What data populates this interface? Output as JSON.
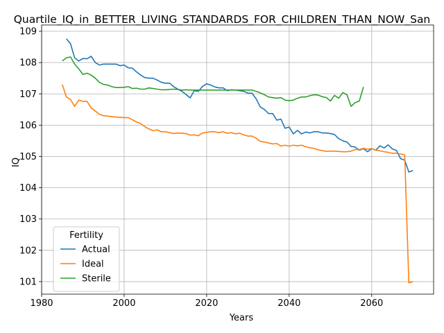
{
  "chart_data": {
    "type": "line",
    "title": "Quartile_IQ_in_BETTER_LIVING_STANDARDS_FOR_CHILDREN_THAN_NOW_San",
    "xlabel": "Years",
    "ylabel": "IQ",
    "xlim": [
      1980,
      2075
    ],
    "ylim": [
      100.6,
      109.2
    ],
    "xticks": [
      1980,
      2000,
      2020,
      2040,
      2060
    ],
    "yticks": [
      101,
      102,
      103,
      104,
      105,
      106,
      107,
      108,
      109
    ],
    "grid": true,
    "legend": {
      "title": "Fertility",
      "placement": "lower-left",
      "entries": [
        "Actual",
        "Ideal",
        "Sterile"
      ]
    },
    "series": [
      {
        "name": "Actual",
        "color": "#1f77b4",
        "points": [
          [
            1986,
            108.76
          ],
          [
            1987,
            108.6
          ],
          [
            1988,
            108.15
          ],
          [
            1989,
            108.05
          ],
          [
            1990,
            108.13
          ],
          [
            1991,
            108.12
          ],
          [
            1992,
            108.2
          ],
          [
            1993,
            108.0
          ],
          [
            1994,
            107.92
          ],
          [
            1995,
            107.95
          ],
          [
            1996,
            107.95
          ],
          [
            1997,
            107.95
          ],
          [
            1998,
            107.95
          ],
          [
            1999,
            107.9
          ],
          [
            2000,
            107.92
          ],
          [
            2001,
            107.83
          ],
          [
            2002,
            107.82
          ],
          [
            2003,
            107.7
          ],
          [
            2004,
            107.6
          ],
          [
            2005,
            107.52
          ],
          [
            2006,
            107.5
          ],
          [
            2007,
            107.5
          ],
          [
            2008,
            107.44
          ],
          [
            2009,
            107.37
          ],
          [
            2010,
            107.34
          ],
          [
            2011,
            107.34
          ],
          [
            2012,
            107.23
          ],
          [
            2013,
            107.15
          ],
          [
            2014,
            107.08
          ],
          [
            2015,
            106.98
          ],
          [
            2016,
            106.87
          ],
          [
            2017,
            107.1
          ],
          [
            2018,
            107.08
          ],
          [
            2019,
            107.24
          ],
          [
            2020,
            107.32
          ],
          [
            2021,
            107.28
          ],
          [
            2022,
            107.22
          ],
          [
            2023,
            107.19
          ],
          [
            2024,
            107.19
          ],
          [
            2025,
            107.1
          ],
          [
            2026,
            107.13
          ],
          [
            2027,
            107.12
          ],
          [
            2028,
            107.1
          ],
          [
            2029,
            107.08
          ],
          [
            2030,
            107.02
          ],
          [
            2031,
            107.02
          ],
          [
            2032,
            106.84
          ],
          [
            2033,
            106.58
          ],
          [
            2034,
            106.5
          ],
          [
            2035,
            106.37
          ],
          [
            2036,
            106.37
          ],
          [
            2037,
            106.16
          ],
          [
            2038,
            106.19
          ],
          [
            2039,
            105.9
          ],
          [
            2040,
            105.94
          ],
          [
            2041,
            105.72
          ],
          [
            2042,
            105.83
          ],
          [
            2043,
            105.72
          ],
          [
            2044,
            105.78
          ],
          [
            2045,
            105.75
          ],
          [
            2046,
            105.79
          ],
          [
            2047,
            105.79
          ],
          [
            2048,
            105.75
          ],
          [
            2049,
            105.75
          ],
          [
            2050,
            105.73
          ],
          [
            2051,
            105.7
          ],
          [
            2052,
            105.57
          ],
          [
            2053,
            105.5
          ],
          [
            2054,
            105.46
          ],
          [
            2055,
            105.32
          ],
          [
            2056,
            105.3
          ],
          [
            2057,
            105.2
          ],
          [
            2058,
            105.25
          ],
          [
            2059,
            105.15
          ],
          [
            2060,
            105.25
          ],
          [
            2061,
            105.2
          ],
          [
            2062,
            105.34
          ],
          [
            2063,
            105.27
          ],
          [
            2064,
            105.37
          ],
          [
            2065,
            105.24
          ],
          [
            2066,
            105.19
          ],
          [
            2067,
            104.93
          ],
          [
            2068,
            104.88
          ],
          [
            2069,
            104.5
          ],
          [
            2070,
            104.55
          ]
        ]
      },
      {
        "name": "Ideal",
        "color": "#ff7f0e",
        "points": [
          [
            1985,
            107.3
          ],
          [
            1986,
            106.9
          ],
          [
            1987,
            106.82
          ],
          [
            1988,
            106.6
          ],
          [
            1989,
            106.8
          ],
          [
            1990,
            106.76
          ],
          [
            1991,
            106.76
          ],
          [
            1992,
            106.55
          ],
          [
            1993,
            106.45
          ],
          [
            1994,
            106.35
          ],
          [
            1995,
            106.3
          ],
          [
            1996,
            106.29
          ],
          [
            1997,
            106.27
          ],
          [
            1998,
            106.26
          ],
          [
            1999,
            106.25
          ],
          [
            2000,
            106.24
          ],
          [
            2001,
            106.24
          ],
          [
            2002,
            106.17
          ],
          [
            2003,
            106.1
          ],
          [
            2004,
            106.05
          ],
          [
            2005,
            105.95
          ],
          [
            2006,
            105.88
          ],
          [
            2007,
            105.82
          ],
          [
            2008,
            105.85
          ],
          [
            2009,
            105.79
          ],
          [
            2010,
            105.79
          ],
          [
            2011,
            105.76
          ],
          [
            2012,
            105.73
          ],
          [
            2013,
            105.75
          ],
          [
            2014,
            105.74
          ],
          [
            2015,
            105.73
          ],
          [
            2016,
            105.68
          ],
          [
            2017,
            105.69
          ],
          [
            2018,
            105.66
          ],
          [
            2019,
            105.75
          ],
          [
            2020,
            105.77
          ],
          [
            2021,
            105.79
          ],
          [
            2022,
            105.79
          ],
          [
            2023,
            105.76
          ],
          [
            2024,
            105.79
          ],
          [
            2025,
            105.74
          ],
          [
            2026,
            105.76
          ],
          [
            2027,
            105.72
          ],
          [
            2028,
            105.74
          ],
          [
            2029,
            105.69
          ],
          [
            2030,
            105.65
          ],
          [
            2031,
            105.65
          ],
          [
            2032,
            105.58
          ],
          [
            2033,
            105.48
          ],
          [
            2034,
            105.46
          ],
          [
            2035,
            105.43
          ],
          [
            2036,
            105.4
          ],
          [
            2037,
            105.41
          ],
          [
            2038,
            105.33
          ],
          [
            2039,
            105.36
          ],
          [
            2040,
            105.33
          ],
          [
            2041,
            105.36
          ],
          [
            2042,
            105.34
          ],
          [
            2043,
            105.36
          ],
          [
            2044,
            105.31
          ],
          [
            2045,
            105.28
          ],
          [
            2046,
            105.26
          ],
          [
            2047,
            105.21
          ],
          [
            2048,
            105.19
          ],
          [
            2049,
            105.16
          ],
          [
            2050,
            105.17
          ],
          [
            2051,
            105.17
          ],
          [
            2052,
            105.16
          ],
          [
            2053,
            105.15
          ],
          [
            2054,
            105.15
          ],
          [
            2055,
            105.17
          ],
          [
            2056,
            105.22
          ],
          [
            2057,
            105.22
          ],
          [
            2058,
            105.26
          ],
          [
            2059,
            105.23
          ],
          [
            2060,
            105.25
          ],
          [
            2061,
            105.2
          ],
          [
            2062,
            105.18
          ],
          [
            2063,
            105.15
          ],
          [
            2064,
            105.13
          ],
          [
            2065,
            105.1
          ],
          [
            2066,
            105.1
          ],
          [
            2067,
            105.08
          ],
          [
            2068,
            105.05
          ],
          [
            2069,
            100.96
          ],
          [
            2070,
            101.0
          ]
        ]
      },
      {
        "name": "Sterile",
        "color": "#2ca02c",
        "points": [
          [
            1985,
            108.05
          ],
          [
            1986,
            108.15
          ],
          [
            1987,
            108.18
          ],
          [
            1988,
            107.95
          ],
          [
            1989,
            107.8
          ],
          [
            1990,
            107.62
          ],
          [
            1991,
            107.66
          ],
          [
            1992,
            107.6
          ],
          [
            1993,
            107.5
          ],
          [
            1994,
            107.37
          ],
          [
            1995,
            107.3
          ],
          [
            1996,
            107.28
          ],
          [
            1997,
            107.23
          ],
          [
            1998,
            107.2
          ],
          [
            1999,
            107.2
          ],
          [
            2000,
            107.21
          ],
          [
            2001,
            107.23
          ],
          [
            2002,
            107.17
          ],
          [
            2003,
            107.18
          ],
          [
            2004,
            107.15
          ],
          [
            2005,
            107.15
          ],
          [
            2006,
            107.19
          ],
          [
            2007,
            107.17
          ],
          [
            2008,
            107.15
          ],
          [
            2009,
            107.13
          ],
          [
            2010,
            107.13
          ],
          [
            2011,
            107.14
          ],
          [
            2012,
            107.15
          ],
          [
            2013,
            107.14
          ],
          [
            2014,
            107.12
          ],
          [
            2015,
            107.13
          ],
          [
            2016,
            107.12
          ],
          [
            2017,
            107.12
          ],
          [
            2018,
            107.12
          ],
          [
            2019,
            107.12
          ],
          [
            2020,
            107.12
          ],
          [
            2021,
            107.12
          ],
          [
            2022,
            107.12
          ],
          [
            2023,
            107.12
          ],
          [
            2024,
            107.12
          ],
          [
            2025,
            107.12
          ],
          [
            2026,
            107.12
          ],
          [
            2027,
            107.12
          ],
          [
            2028,
            107.12
          ],
          [
            2029,
            107.12
          ],
          [
            2030,
            107.12
          ],
          [
            2031,
            107.12
          ],
          [
            2032,
            107.08
          ],
          [
            2033,
            107.03
          ],
          [
            2034,
            106.97
          ],
          [
            2035,
            106.9
          ],
          [
            2036,
            106.88
          ],
          [
            2037,
            106.86
          ],
          [
            2038,
            106.88
          ],
          [
            2039,
            106.8
          ],
          [
            2040,
            106.78
          ],
          [
            2041,
            106.8
          ],
          [
            2042,
            106.86
          ],
          [
            2043,
            106.9
          ],
          [
            2044,
            106.9
          ],
          [
            2045,
            106.94
          ],
          [
            2046,
            106.97
          ],
          [
            2047,
            106.96
          ],
          [
            2048,
            106.91
          ],
          [
            2049,
            106.88
          ],
          [
            2050,
            106.77
          ],
          [
            2051,
            106.95
          ],
          [
            2052,
            106.86
          ],
          [
            2053,
            107.04
          ],
          [
            2054,
            106.97
          ],
          [
            2055,
            106.6
          ],
          [
            2056,
            106.72
          ],
          [
            2057,
            106.77
          ],
          [
            2058,
            107.22
          ]
        ]
      }
    ]
  }
}
